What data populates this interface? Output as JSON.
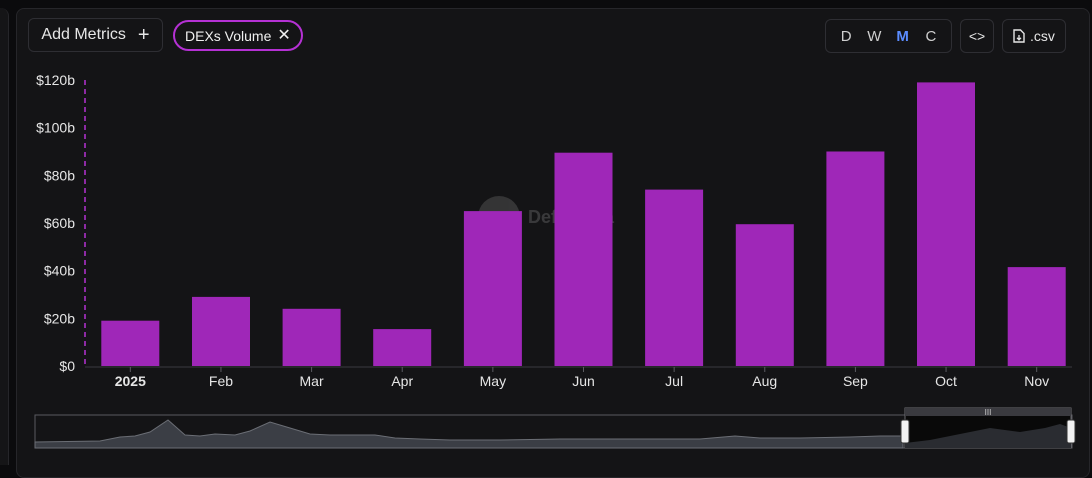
{
  "toolbar": {
    "add_metrics_label": "Add Metrics",
    "add_icon": "plus-icon",
    "chip_label": "DEXs Volume",
    "chip_close_icon": "close-icon",
    "periods": [
      "D",
      "W",
      "M",
      "C"
    ],
    "active_period": "M",
    "embed_icon": "code-icon",
    "csv_label": ".csv",
    "csv_icon": "download-file-icon"
  },
  "watermark": {
    "text": "DefiLlama"
  },
  "colors": {
    "bar": "#9f27b8",
    "chip_border": "#b531d4",
    "active_period": "#5b8cff",
    "background": "#141416"
  },
  "chart_data": {
    "type": "bar",
    "categories": [
      "2025",
      "Feb",
      "Mar",
      "Apr",
      "May",
      "Jun",
      "Jul",
      "Aug",
      "Sep",
      "Oct",
      "Nov"
    ],
    "series": [
      {
        "values": [
          19,
          29,
          24,
          15.5,
          65,
          89.5,
          74,
          59.5,
          90,
          119,
          41.5
        ]
      }
    ],
    "unit": "billions USD",
    "ylim": [
      0,
      120
    ],
    "yticks": [
      0,
      20,
      40,
      60,
      80,
      100,
      120
    ],
    "ytick_labels": [
      "$0",
      "$20b",
      "$40b",
      "$60b",
      "$80b",
      "$100b",
      "$120b"
    ],
    "title": "",
    "xlabel": "",
    "ylabel": "",
    "grid": false,
    "brush_range": "Jan 2025 – Nov 2025"
  }
}
